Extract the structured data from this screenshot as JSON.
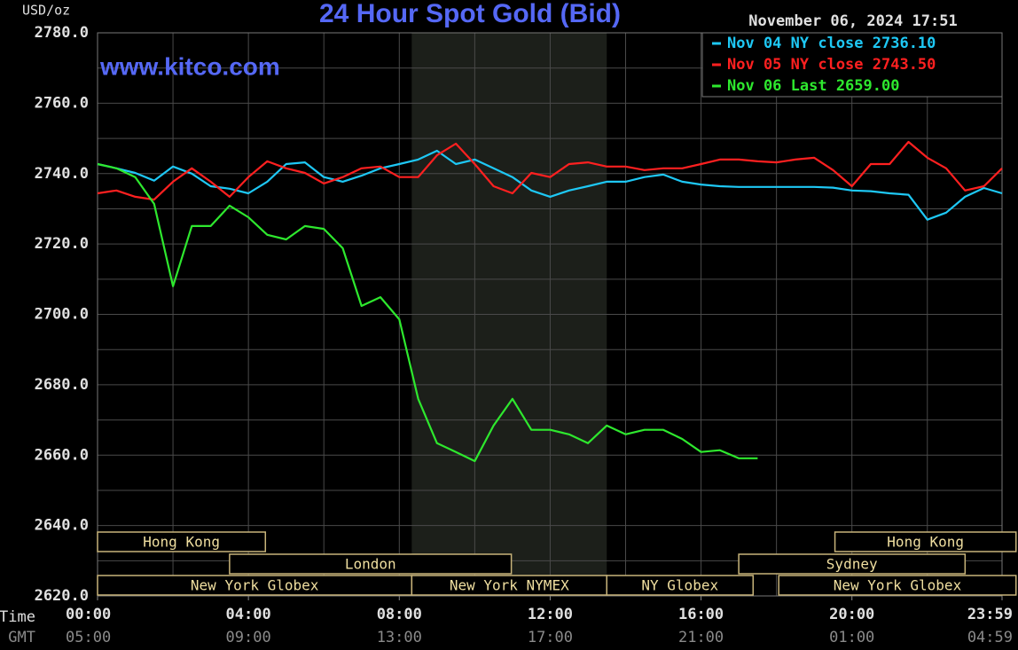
{
  "chart_data": {
    "type": "line",
    "title": "24 Hour Spot Gold (Bid)",
    "y_axis_label": "USD/oz",
    "watermark": "www.kitco.com",
    "timestamp": "November 06, 2024 17:51",
    "x_axis_labels": [
      "NY Time",
      "GMT"
    ],
    "xlim": [
      0,
      23.98
    ],
    "xticks": [
      {
        "value": 0,
        "label": "00:00"
      },
      {
        "value": 4,
        "label": "04:00"
      },
      {
        "value": 8,
        "label": "08:00"
      },
      {
        "value": 12,
        "label": "12:00"
      },
      {
        "value": 16,
        "label": "16:00"
      },
      {
        "value": 20,
        "label": "20:00"
      },
      {
        "value": 23.98,
        "label": "23:59"
      }
    ],
    "gmt_labels": [
      "05:00",
      "09:00",
      "13:00",
      "17:00",
      "21:00",
      "01:00",
      "04:59"
    ],
    "xgrid": [
      2,
      4,
      6,
      8,
      10,
      12,
      14,
      16,
      18,
      20,
      22
    ],
    "ylim": [
      2620,
      2780
    ],
    "yticks": [
      {
        "value": 2620,
        "label": "2620.0"
      },
      {
        "value": 2640,
        "label": "2640.0"
      },
      {
        "value": 2660,
        "label": "2660.0"
      },
      {
        "value": 2680,
        "label": "2680.0"
      },
      {
        "value": 2700,
        "label": "2700.0"
      },
      {
        "value": 2720,
        "label": "2720.0"
      },
      {
        "value": 2740,
        "label": "2740.0"
      },
      {
        "value": 2760,
        "label": "2760.0"
      },
      {
        "value": 2780,
        "label": "2780.0"
      }
    ],
    "ygrid": [
      2630,
      2650,
      2670,
      2690,
      2710,
      2730,
      2750,
      2770
    ],
    "grid": true,
    "shaded": [
      8.33,
      13.5
    ],
    "sessions": [
      [
        {
          "name": "Hong Kong",
          "start": 0,
          "end": 4.45
        },
        {
          "name": "Hong Kong",
          "start": 19.55,
          "end": 24.35
        }
      ],
      [
        {
          "name": "London",
          "start": 3.5,
          "end": 10.97
        },
        {
          "name": "Sydney",
          "start": 17.0,
          "end": 23.0
        }
      ],
      [
        {
          "name": "New York Globex",
          "start": 0,
          "end": 8.33
        },
        {
          "name": "New York NYMEX",
          "start": 8.33,
          "end": 13.5
        },
        {
          "name": "NY Globex",
          "start": 13.5,
          "end": 17.38
        },
        {
          "name": "New York Globex",
          "start": 18.06,
          "end": 24.35
        }
      ]
    ],
    "legend": "upper right",
    "x": [
      0,
      0.5,
      1,
      1.5,
      2,
      2.5,
      3,
      3.5,
      4,
      4.5,
      5,
      5.5,
      6,
      6.5,
      7,
      7.5,
      8,
      8.5,
      9,
      9.5,
      10,
      10.5,
      11,
      11.5,
      12,
      12.5,
      13,
      13.5,
      14,
      14.5,
      15,
      15.5,
      16,
      16.5,
      17,
      17.5,
      18,
      18.5,
      19,
      19.5,
      20,
      20.5,
      21,
      21.5,
      22,
      22.5,
      23,
      23.5,
      23.98
    ],
    "series": [
      {
        "name": "Nov 04 NY close 2736.10",
        "color": "#1ec8f5",
        "values": [
          2742.7,
          2741.5,
          2740.2,
          2738,
          2742,
          2740,
          2736.4,
          2735.7,
          2734.4,
          2737.7,
          2742.7,
          2743.2,
          2739,
          2737.7,
          2739.4,
          2741.5,
          2742.7,
          2744,
          2746.5,
          2742.7,
          2744,
          2741.5,
          2739,
          2735.2,
          2733.4,
          2735.2,
          2736.4,
          2737.7,
          2737.7,
          2739,
          2739.7,
          2737.7,
          2736.9,
          2736.4,
          2736.2,
          2736.2,
          2736.2,
          2736.2,
          2736.2,
          2736,
          2735.2,
          2735,
          2734.4,
          2734,
          2726.9,
          2728.9,
          2733.4,
          2735.9,
          2734.4
        ]
      },
      {
        "name": "Nov 05 NY close 2743.50",
        "color": "#ff2020",
        "values": [
          2734.4,
          2735.2,
          2733.4,
          2732.6,
          2737.7,
          2741.5,
          2737.7,
          2733.4,
          2739,
          2743.5,
          2741.5,
          2740.2,
          2737.2,
          2739,
          2741.5,
          2742,
          2739,
          2739,
          2745.2,
          2748.5,
          2742.7,
          2736.4,
          2734.4,
          2740.2,
          2739,
          2742.7,
          2743.2,
          2742,
          2742,
          2741,
          2741.5,
          2741.5,
          2742.7,
          2744,
          2744,
          2743.5,
          2743.2,
          2744,
          2744.5,
          2741,
          2736.4,
          2742.7,
          2742.7,
          2749,
          2744.5,
          2741.5,
          2735.2,
          2736.4,
          2741.5
        ]
      },
      {
        "name": "Nov 06 Last 2659.00",
        "color": "#2ee82e",
        "values": [
          2742.7,
          2741.5,
          2739,
          2731.4,
          2708,
          2725.1,
          2725.1,
          2730.9,
          2727.6,
          2722.6,
          2721.3,
          2725.1,
          2724.3,
          2718.8,
          2702.4,
          2704.9,
          2698.6,
          2676,
          2663.4,
          2660.9,
          2658.3,
          2668.4,
          2676,
          2667.2,
          2667.2,
          2665.9,
          2663.4,
          2668.4,
          2665.9,
          2667.2,
          2667.2,
          2664.6,
          2660.9,
          2661.4,
          2659.1,
          2659.1,
          null,
          null,
          null,
          null,
          null,
          null,
          null,
          null,
          null,
          null,
          null,
          null,
          null
        ]
      }
    ]
  }
}
